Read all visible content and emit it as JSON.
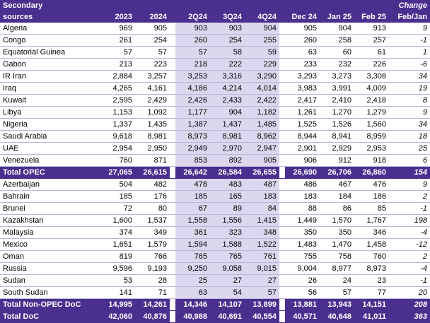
{
  "header": {
    "label_line1": "Secondary",
    "label_line2": "sources",
    "change_line1": "Change",
    "change_line2": "Feb/Jan",
    "columns": [
      "2023",
      "2024",
      "2Q24",
      "3Q24",
      "4Q24",
      "Dec 24",
      "Jan 25",
      "Feb 25"
    ]
  },
  "opec_rows": [
    {
      "name": "Algeria",
      "values": [
        "969",
        "905",
        "903",
        "903",
        "904",
        "905",
        "904",
        "913"
      ],
      "change": "9"
    },
    {
      "name": "Congo",
      "values": [
        "261",
        "254",
        "260",
        "254",
        "255",
        "260",
        "258",
        "257"
      ],
      "change": "-1"
    },
    {
      "name": "Equatorial Guinea",
      "values": [
        "57",
        "57",
        "57",
        "58",
        "59",
        "63",
        "60",
        "61"
      ],
      "change": "1"
    },
    {
      "name": "Gabon",
      "values": [
        "213",
        "223",
        "218",
        "222",
        "229",
        "233",
        "232",
        "226"
      ],
      "change": "-6"
    },
    {
      "name": "IR Iran",
      "values": [
        "2,884",
        "3,257",
        "3,253",
        "3,316",
        "3,290",
        "3,293",
        "3,273",
        "3,308"
      ],
      "change": "34"
    },
    {
      "name": "Iraq",
      "values": [
        "4,265",
        "4,161",
        "4,186",
        "4,214",
        "4,014",
        "3,983",
        "3,991",
        "4,009"
      ],
      "change": "19"
    },
    {
      "name": "Kuwait",
      "values": [
        "2,595",
        "2,429",
        "2,426",
        "2,433",
        "2,422",
        "2,417",
        "2,410",
        "2,418"
      ],
      "change": "8"
    },
    {
      "name": "Libya",
      "values": [
        "1,153",
        "1,092",
        "1,177",
        "904",
        "1,182",
        "1,261",
        "1,270",
        "1,279"
      ],
      "change": "9"
    },
    {
      "name": "Nigeria",
      "values": [
        "1,337",
        "1,435",
        "1,387",
        "1,437",
        "1,485",
        "1,525",
        "1,526",
        "1,560"
      ],
      "change": "34"
    },
    {
      "name": "Saudi Arabia",
      "values": [
        "9,618",
        "8,981",
        "8,973",
        "8,981",
        "8,962",
        "8,944",
        "8,941",
        "8,959"
      ],
      "change": "18"
    },
    {
      "name": "UAE",
      "values": [
        "2,954",
        "2,950",
        "2,949",
        "2,970",
        "2,947",
        "2,901",
        "2,929",
        "2,953"
      ],
      "change": "25"
    },
    {
      "name": "Venezuela",
      "values": [
        "760",
        "871",
        "853",
        "892",
        "905",
        "906",
        "912",
        "918"
      ],
      "change": "6"
    }
  ],
  "total_opec": {
    "name": "Total  OPEC",
    "values": [
      "27,065",
      "26,615",
      "26,642",
      "26,584",
      "26,655",
      "26,690",
      "26,706",
      "26,860"
    ],
    "change": "154"
  },
  "nonopec_rows": [
    {
      "name": "Azerbaijan",
      "values": [
        "504",
        "482",
        "478",
        "483",
        "487",
        "486",
        "467",
        "476"
      ],
      "change": "9"
    },
    {
      "name": "Bahrain",
      "values": [
        "185",
        "176",
        "185",
        "165",
        "183",
        "183",
        "184",
        "186"
      ],
      "change": "2"
    },
    {
      "name": "Brunei",
      "values": [
        "72",
        "80",
        "67",
        "89",
        "84",
        "88",
        "86",
        "85"
      ],
      "change": "-1"
    },
    {
      "name": "Kazakhstan",
      "values": [
        "1,600",
        "1,537",
        "1,558",
        "1,556",
        "1,415",
        "1,449",
        "1,570",
        "1,767"
      ],
      "change": "198"
    },
    {
      "name": "Malaysia",
      "values": [
        "374",
        "349",
        "361",
        "323",
        "348",
        "350",
        "350",
        "346"
      ],
      "change": "-4"
    },
    {
      "name": "Mexico",
      "values": [
        "1,651",
        "1,579",
        "1,594",
        "1,588",
        "1,522",
        "1,483",
        "1,470",
        "1,458"
      ],
      "change": "-12"
    },
    {
      "name": "Oman",
      "values": [
        "819",
        "766",
        "765",
        "765",
        "761",
        "755",
        "758",
        "760"
      ],
      "change": "2"
    },
    {
      "name": "Russia",
      "values": [
        "9,596",
        "9,193",
        "9,250",
        "9,058",
        "9,015",
        "9,004",
        "8,977",
        "8,973"
      ],
      "change": "-4"
    },
    {
      "name": "Sudan",
      "values": [
        "53",
        "28",
        "25",
        "27",
        "27",
        "26",
        "24",
        "23"
      ],
      "change": "-1"
    },
    {
      "name": "South Sudan",
      "values": [
        "141",
        "71",
        "63",
        "54",
        "57",
        "56",
        "57",
        "77"
      ],
      "change": "20"
    }
  ],
  "total_nonopec": {
    "name": "Total Non-OPEC DoC",
    "values": [
      "14,995",
      "14,261",
      "14,346",
      "14,107",
      "13,899",
      "13,881",
      "13,943",
      "14,151"
    ],
    "change": "208"
  },
  "total_doc": {
    "name": "Total DoC",
    "values": [
      "42,060",
      "40,876",
      "40,988",
      "40,691",
      "40,554",
      "40,571",
      "40,648",
      "41,011"
    ],
    "change": "363"
  }
}
